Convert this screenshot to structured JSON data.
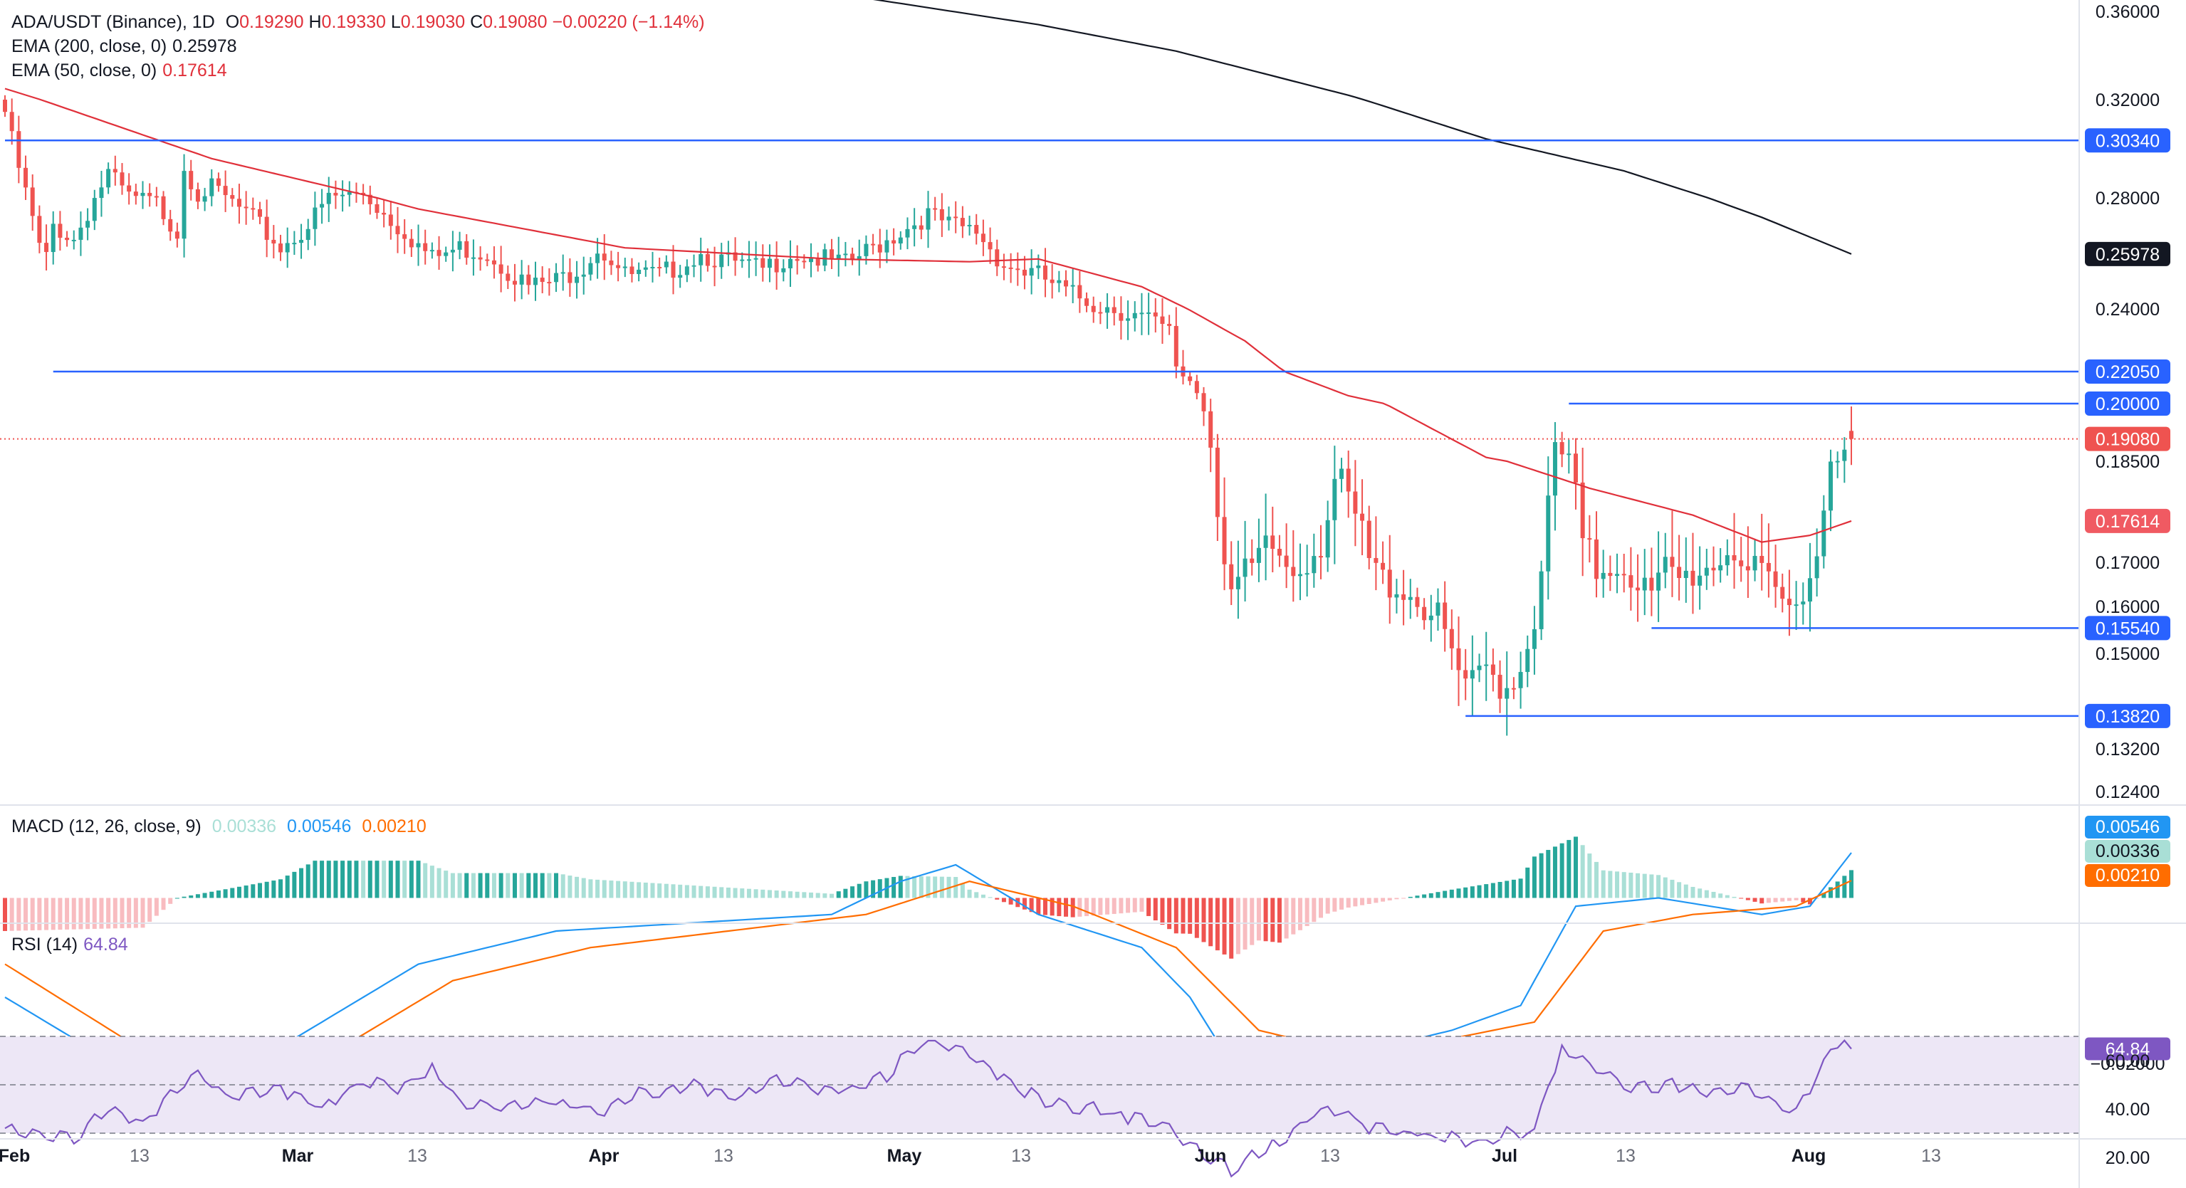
{
  "chart_data": {
    "type": "candlestick",
    "symbol_title": "ADA/USDT (Binance), 1D",
    "ohlc_readout": {
      "o_label": "O",
      "o": "0.19290",
      "h_label": "H",
      "h": "0.19330",
      "l_label": "L",
      "l": "0.19030",
      "c_label": "C",
      "c": "0.19080",
      "change": "−0.00220 (−1.14%)"
    },
    "ema200": {
      "label": "EMA (200, close, 0)",
      "value": "0.25978",
      "color": "#131722"
    },
    "ema50": {
      "label": "EMA (50, close, 0)",
      "value": "0.17614",
      "color": "#e0303a"
    },
    "x_ticks": [
      {
        "label": "Feb",
        "date": "2024-02-01"
      },
      {
        "label": "13",
        "date": "2024-02-13"
      },
      {
        "label": "Mar",
        "date": "2024-03-01"
      },
      {
        "label": "13",
        "date": "2024-03-13"
      },
      {
        "label": "Apr",
        "date": "2024-04-01"
      },
      {
        "label": "13",
        "date": "2024-04-13"
      },
      {
        "label": "May",
        "date": "2024-05-01"
      },
      {
        "label": "13",
        "date": "2024-05-13"
      },
      {
        "label": "Jun",
        "date": "2024-06-01"
      },
      {
        "label": "13",
        "date": "2024-06-13"
      },
      {
        "label": "Jul",
        "date": "2024-07-01"
      },
      {
        "label": "13",
        "date": "2024-07-13"
      },
      {
        "label": "Aug",
        "date": "2024-08-01"
      },
      {
        "label": "13",
        "date": "2024-08-13"
      }
    ],
    "y_ticks": [
      "0.36000",
      "0.32000",
      "0.28000",
      "0.24000",
      "0.18500",
      "0.17000",
      "0.16000",
      "0.15000",
      "0.13200",
      "0.12400"
    ],
    "levels": [
      {
        "label": "0.30340",
        "value": 0.3034,
        "from": "2024-02-01"
      },
      {
        "label": "0.22050",
        "value": 0.2205,
        "from": "2024-02-06"
      },
      {
        "label": "0.20000",
        "value": 0.2,
        "from": "2024-07-03"
      },
      {
        "label": "0.15540",
        "value": 0.1554,
        "from": "2024-07-14"
      },
      {
        "label": "0.13820",
        "value": 0.1382,
        "from": "2024-06-25"
      }
    ],
    "last_price": {
      "label": "0.19080",
      "value": 0.1908
    },
    "ema50_badge": "0.17614",
    "ema200_badge": "0.25978",
    "colors": {
      "up": "#26a69a",
      "down": "#ef5350",
      "ema50": "#e0303a",
      "ema200": "#131722",
      "level": "#2962ff",
      "macd": "#2196f3",
      "signal": "#ff6d00",
      "hist_up_strong": "#26a69a",
      "hist_up_weak": "#a9dfd6",
      "hist_down_strong": "#ef5350",
      "hist_down_weak": "#f8bcc0",
      "rsi": "#7e57c2",
      "rsi_band": "#ede7f6"
    },
    "macd": {
      "label": "MACD (12, 26, close, 9)",
      "hist": "0.00336",
      "macd": "0.00546",
      "signal": "0.00210",
      "y_tick": "−0.02000"
    },
    "rsi": {
      "label": "RSI (14)",
      "value": "64.84",
      "y_ticks": [
        "60.00",
        "40.00",
        "20.00"
      ],
      "upper": 70,
      "lower": 30
    }
  }
}
